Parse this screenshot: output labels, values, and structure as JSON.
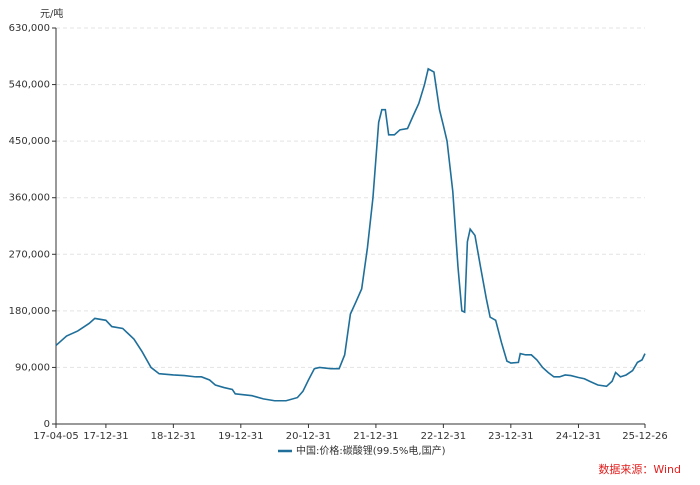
{
  "chart_data": {
    "type": "line",
    "y_unit_label": "元/吨",
    "source": "数据来源：Wind",
    "xlim": [
      "17-04-05",
      "25-12-26"
    ],
    "xticks": [
      "17-04-05",
      "17-12-31",
      "18-12-31",
      "19-12-31",
      "20-12-31",
      "21-12-31",
      "22-12-31",
      "23-12-31",
      "24-12-31",
      "25-12-26"
    ],
    "ylim": [
      0,
      630000
    ],
    "yticks": [
      0,
      {
        "value": 90000,
        "label": "90,000"
      },
      {
        "value": 180000,
        "label": "180,000"
      },
      {
        "value": 270000,
        "label": "270,000"
      },
      {
        "value": 360000,
        "label": "360,000"
      },
      {
        "value": 450000,
        "label": "450,000"
      },
      {
        "value": 540000,
        "label": "540,000"
      },
      {
        "value": 630000,
        "label": "630,000"
      }
    ],
    "grid": true,
    "legend": "bottom",
    "x": [
      "17-04-05",
      "17-06-01",
      "17-08-01",
      "17-10-01",
      "17-11-01",
      "17-12-31",
      "18-02-01",
      "18-04-01",
      "18-06-01",
      "18-07-15",
      "18-09-01",
      "18-10-15",
      "18-12-31",
      "19-03-01",
      "19-05-01",
      "19-06-01",
      "19-07-15",
      "19-08-15",
      "19-10-01",
      "19-11-15",
      "19-12-01",
      "19-12-31",
      "20-03-01",
      "20-05-01",
      "20-07-01",
      "20-09-01",
      "20-11-01",
      "20-12-01",
      "20-12-31",
      "21-02-01",
      "21-03-01",
      "21-05-01",
      "21-06-15",
      "21-07-15",
      "21-08-15",
      "21-09-15",
      "21-10-15",
      "21-11-15",
      "21-12-15",
      "22-01-15",
      "22-02-01",
      "22-02-20",
      "22-03-10",
      "22-04-10",
      "22-05-10",
      "22-06-20",
      "22-07-20",
      "22-08-20",
      "22-09-20",
      "22-10-10",
      "22-11-10",
      "22-12-10",
      "22-12-31",
      "23-01-20",
      "23-02-20",
      "23-03-20",
      "23-04-10",
      "23-04-25",
      "23-05-10",
      "23-05-25",
      "23-06-20",
      "23-07-20",
      "23-08-20",
      "23-09-10",
      "23-10-10",
      "23-11-10",
      "23-12-10",
      "23-12-31",
      "24-02-10",
      "24-02-20",
      "24-03-20",
      "24-04-20",
      "24-05-20",
      "24-06-20",
      "24-07-20",
      "24-08-20",
      "24-09-20",
      "24-10-20",
      "24-11-20",
      "24-12-31",
      "25-02-01",
      "25-03-01",
      "25-04-15",
      "25-06-01",
      "25-07-01",
      "25-07-20",
      "25-08-15",
      "25-09-15",
      "25-10-20",
      "25-11-15",
      "25-12-10",
      "25-12-26"
    ],
    "series": [
      {
        "name": "中国:价格:碳酸锂(99.5%电,国产)",
        "color": "#1f6f9a",
        "values": [
          125000,
          140000,
          148000,
          160000,
          168000,
          165000,
          155000,
          152000,
          135000,
          115000,
          90000,
          80000,
          78000,
          77000,
          75000,
          75000,
          70000,
          62000,
          58000,
          55000,
          48000,
          47000,
          45000,
          40000,
          37000,
          37000,
          42000,
          52000,
          70000,
          88000,
          90000,
          88000,
          88000,
          110000,
          175000,
          195000,
          215000,
          280000,
          360000,
          480000,
          500000,
          500000,
          460000,
          460000,
          468000,
          470000,
          490000,
          510000,
          540000,
          565000,
          560000,
          500000,
          475000,
          450000,
          370000,
          250000,
          180000,
          178000,
          290000,
          310000,
          300000,
          250000,
          200000,
          170000,
          165000,
          130000,
          100000,
          97000,
          98000,
          112000,
          110000,
          110000,
          102000,
          90000,
          82000,
          75000,
          75000,
          78000,
          77000,
          74000,
          72000,
          68000,
          62000,
          60000,
          68000,
          82000,
          75000,
          78000,
          85000,
          98000,
          102000,
          112000
        ]
      }
    ]
  }
}
